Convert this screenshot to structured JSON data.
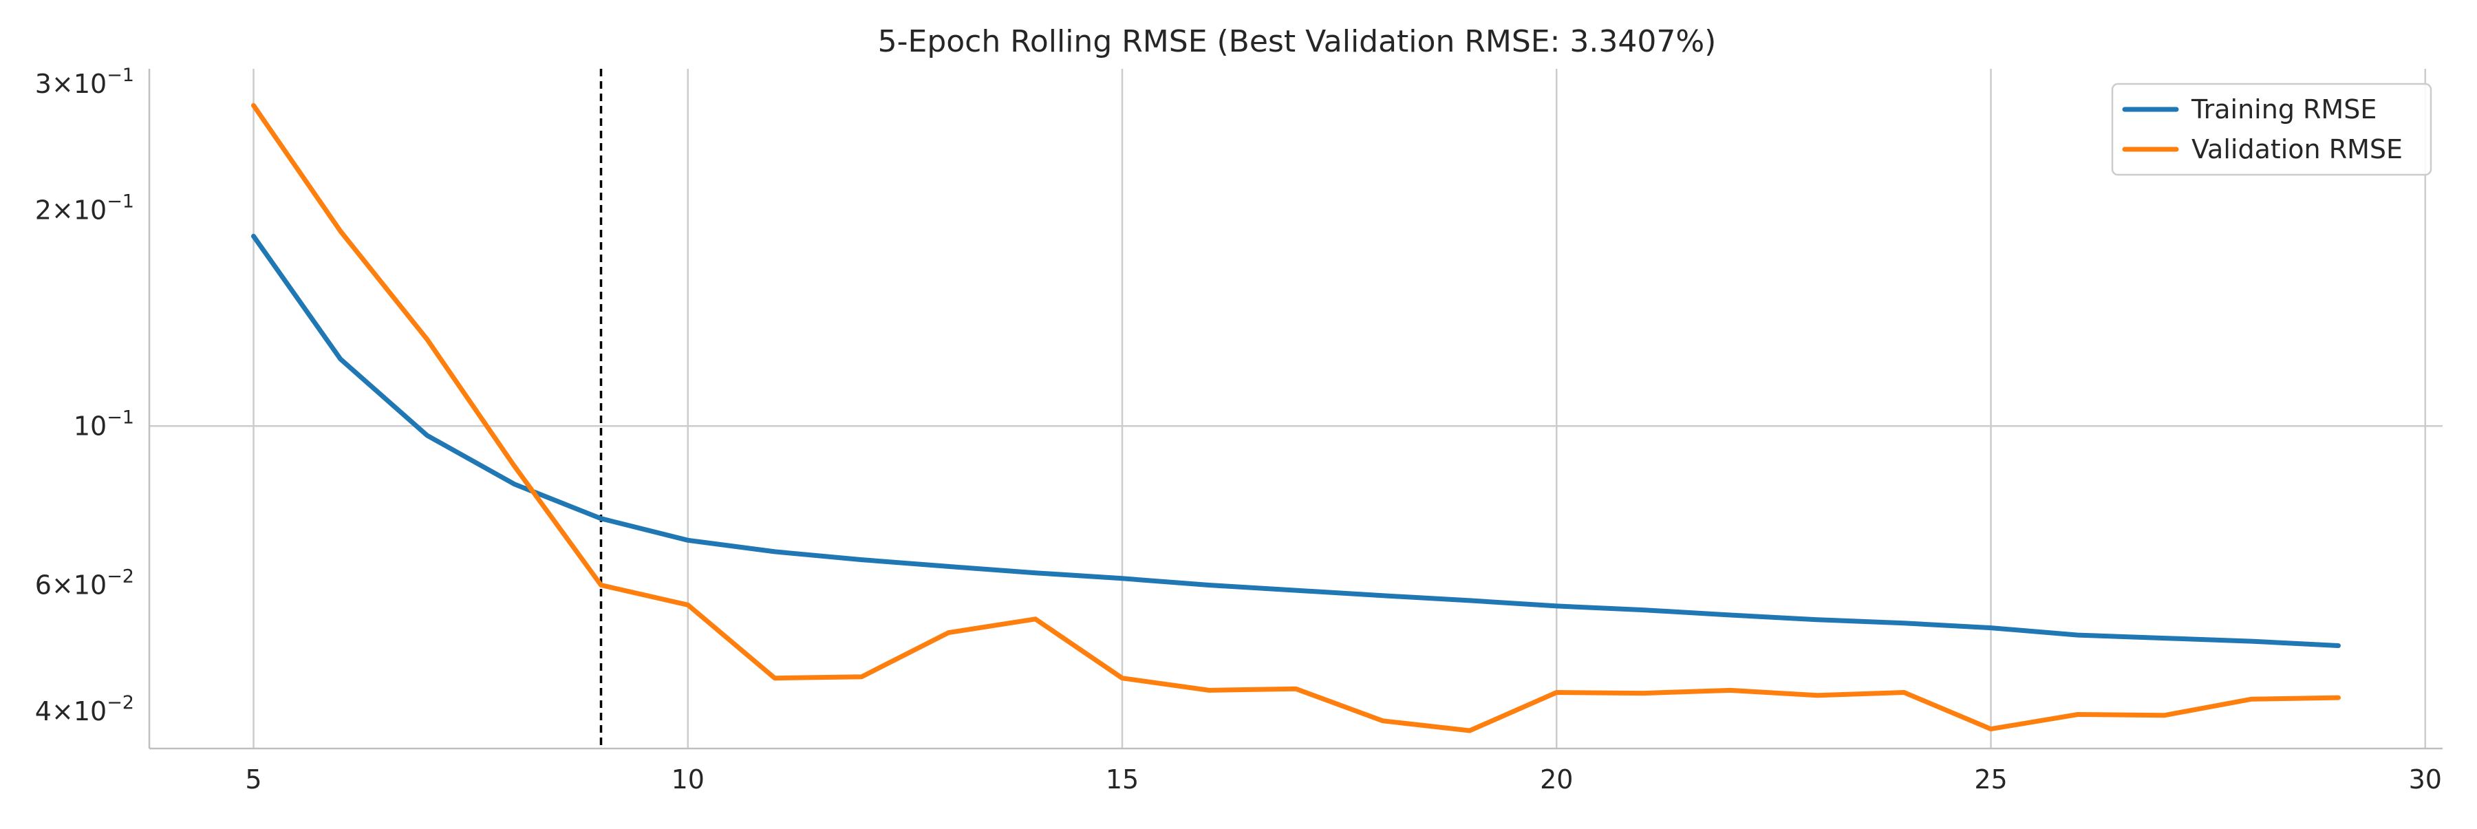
{
  "chart_data": {
    "type": "line",
    "title": "5-Epoch Rolling RMSE (Best Validation RMSE: 3.3407%)",
    "xlabel": "",
    "ylabel": "",
    "x_scale": "linear",
    "y_scale": "log",
    "xlim": [
      3.8,
      30.2
    ],
    "ylim": [
      0.0355,
      0.315
    ],
    "x_ticks": [
      5,
      10,
      15,
      20,
      25,
      30
    ],
    "y_major_ticks": [
      {
        "value": 0.1,
        "mantissa": "",
        "exponent": "−1",
        "base": "10"
      }
    ],
    "y_minor_ticks": [
      {
        "value": 0.04,
        "mantissa": "4",
        "exponent": "−2",
        "base": "10"
      },
      {
        "value": 0.06,
        "mantissa": "6",
        "exponent": "−2",
        "base": "10"
      },
      {
        "value": 0.2,
        "mantissa": "2",
        "exponent": "−1",
        "base": "10"
      },
      {
        "value": 0.3,
        "mantissa": "3",
        "exponent": "−1",
        "base": "10"
      }
    ],
    "grid": true,
    "legend_position": "top-right",
    "vertical_marker": {
      "x": 9,
      "style": "dashed",
      "color": "#000000"
    },
    "x": [
      5,
      6,
      7,
      8,
      9,
      10,
      11,
      12,
      13,
      14,
      15,
      16,
      17,
      18,
      19,
      20,
      21,
      22,
      23,
      24,
      25,
      26,
      27,
      28,
      29
    ],
    "series": [
      {
        "name": "Training RMSE",
        "color": "#1f77b4",
        "values": [
          0.184,
          0.124,
          0.097,
          0.083,
          0.0743,
          0.0693,
          0.0668,
          0.0651,
          0.0637,
          0.0624,
          0.0613,
          0.06,
          0.059,
          0.058,
          0.0571,
          0.0561,
          0.0554,
          0.0545,
          0.0537,
          0.0531,
          0.0523,
          0.0511,
          0.0506,
          0.0501,
          0.0494
        ]
      },
      {
        "name": "Validation RMSE",
        "color": "#ff7f0e",
        "values": [
          0.28,
          0.187,
          0.132,
          0.088,
          0.06,
          0.0563,
          0.0445,
          0.0447,
          0.0515,
          0.0538,
          0.0445,
          0.0428,
          0.043,
          0.0388,
          0.0376,
          0.0425,
          0.0424,
          0.0428,
          0.0421,
          0.0425,
          0.0378,
          0.0396,
          0.0395,
          0.0416,
          0.0418
        ]
      }
    ]
  }
}
